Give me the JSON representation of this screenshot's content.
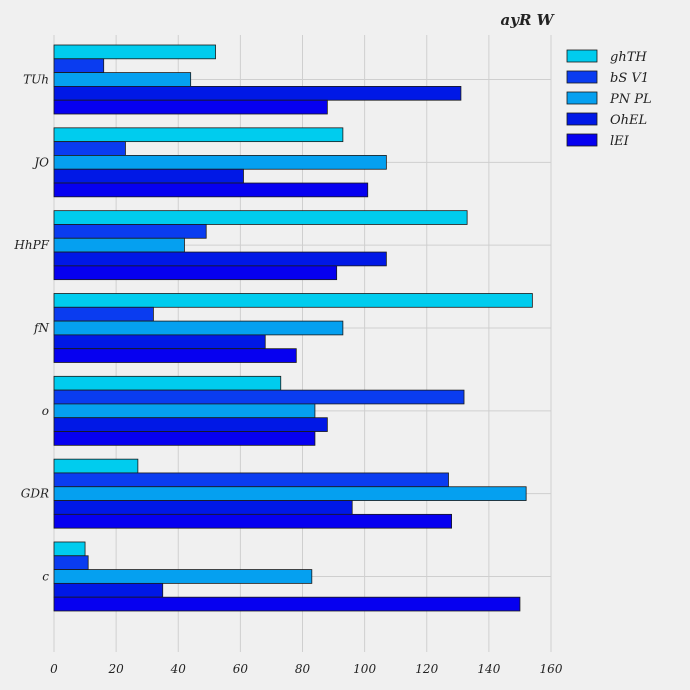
{
  "chart_data": {
    "type": "bar",
    "orientation": "horizontal",
    "title": "ayR W",
    "xlabel": "",
    "ylabel": "",
    "xlim": [
      0,
      160
    ],
    "xticks": [
      0,
      20,
      40,
      60,
      80,
      100,
      120,
      140,
      160
    ],
    "grid": true,
    "legend_position": "top-right",
    "categories": [
      "TUh",
      "JO",
      "HhPF",
      "fN",
      "o",
      "GDR",
      "c"
    ],
    "series": [
      {
        "name": "ghTH",
        "color": "#00ccee",
        "values": [
          52,
          93,
          133,
          154,
          73,
          27,
          10
        ]
      },
      {
        "name": "bS V1",
        "color": "#0a3cf0",
        "values": [
          16,
          23,
          49,
          32,
          132,
          127,
          11
        ]
      },
      {
        "name": "PN PL",
        "color": "#05a0f0",
        "values": [
          44,
          107,
          42,
          93,
          84,
          152,
          83
        ]
      },
      {
        "name": "OhEL",
        "color": "#0018e6",
        "values": [
          131,
          61,
          107,
          68,
          88,
          96,
          35
        ]
      },
      {
        "name": "lEI",
        "color": "#0600f0",
        "values": [
          88,
          101,
          91,
          78,
          84,
          128,
          150
        ]
      }
    ]
  }
}
